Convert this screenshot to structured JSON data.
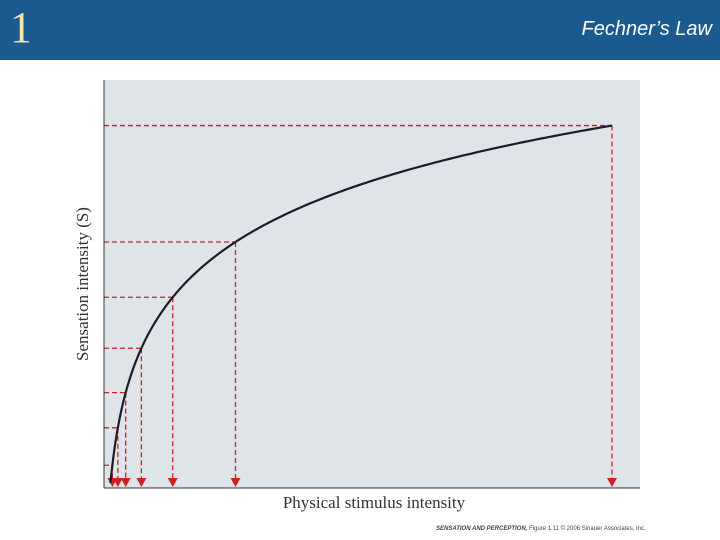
{
  "header": {
    "chapter_number": "1",
    "title": "Fechner’s Law",
    "background_color": "#1a5a8f",
    "chapter_color": "#f2e6a6"
  },
  "chart_data": {
    "type": "line",
    "title": "",
    "xlabel": "Physical stimulus intensity",
    "ylabel": "Sensation intensity (S)",
    "curve": "logarithmic",
    "stimulus_levels": [
      0.3,
      1,
      2,
      4,
      8,
      16,
      64
    ],
    "sensation_levels": [
      0.3,
      1,
      2,
      3,
      4,
      5,
      6
    ],
    "guide_lines": "red dashed, with arrows pointing down to the x axis",
    "plot_background": "#dfe4e8",
    "curve_color": "#1c1c2a",
    "guide_color": "#cc2222"
  },
  "footer": {
    "source": "SENSATION AND PERCEPTION,",
    "figure": " Figure 1.11 ",
    "copyright": "© 2006 Sinauer Associates, Inc."
  }
}
